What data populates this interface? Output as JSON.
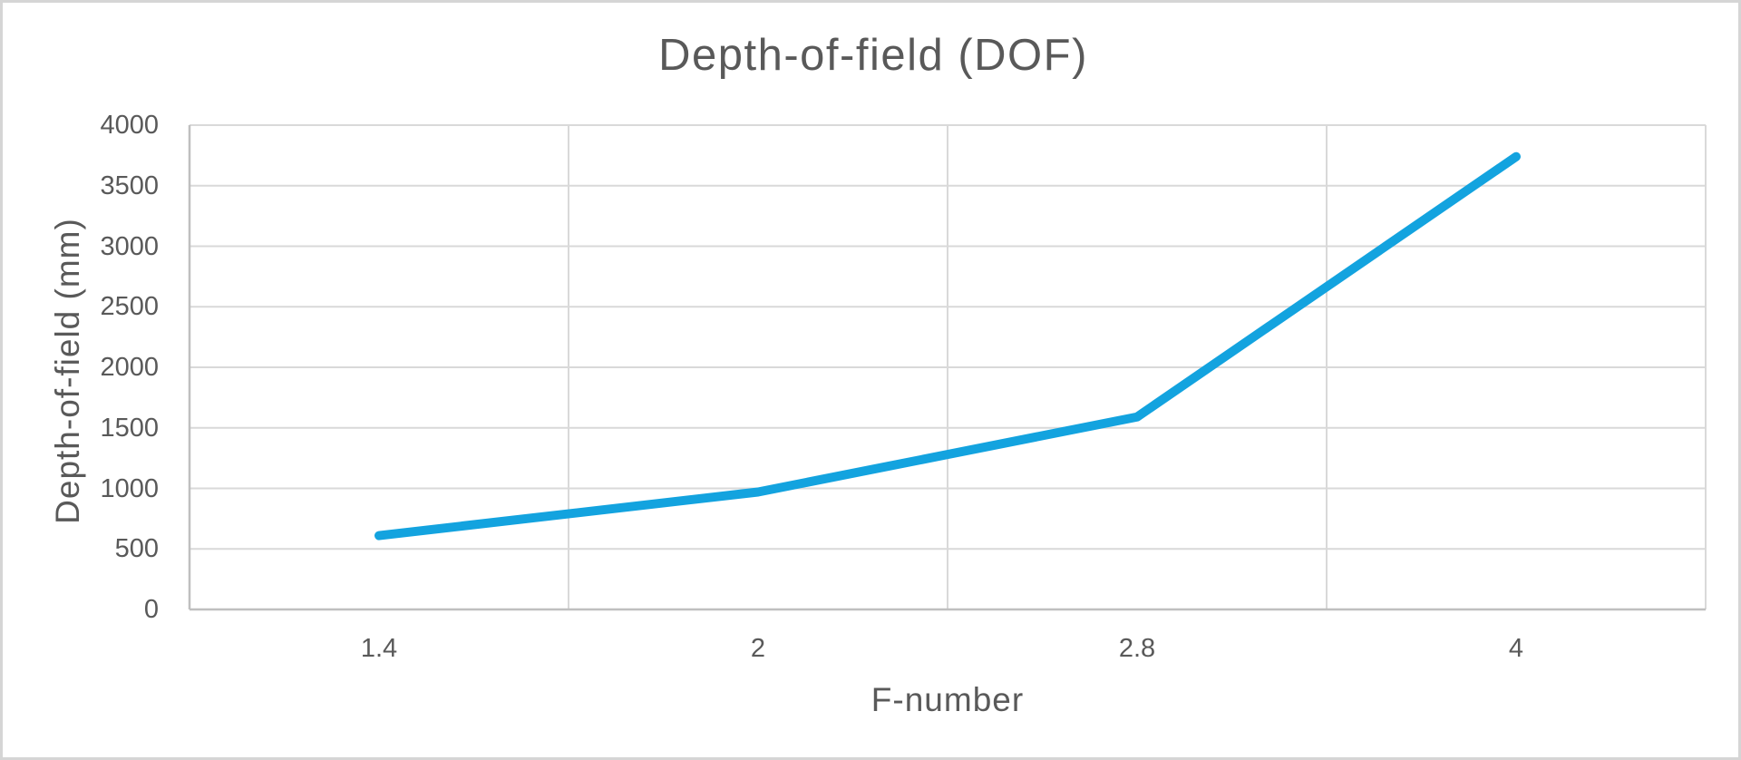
{
  "chart_data": {
    "type": "line",
    "title": "Depth-of-field (DOF)",
    "xlabel": "F-number",
    "ylabel": "Depth-of-field (mm)",
    "categories": [
      "1.4",
      "2",
      "2.8",
      "4"
    ],
    "series": [
      {
        "name": "Depth-of-field",
        "values": [
          610,
          970,
          1590,
          3740
        ]
      }
    ],
    "ylim": [
      0,
      4000
    ],
    "y_tick_step": 500,
    "y_tick_labels": [
      "0",
      "500",
      "1000",
      "1500",
      "2000",
      "2500",
      "3000",
      "3500",
      "4000"
    ],
    "grid": "horizontal every 500; vertical at category boundaries",
    "legend_position": "none",
    "markers": "none",
    "colors": {
      "line": "#13A3DF",
      "gridline": "#D9D9D9",
      "axis_line": "#BFBFBF",
      "text": "#595959",
      "frame_border": "#D5D5D5",
      "background": "#FFFFFF"
    }
  }
}
